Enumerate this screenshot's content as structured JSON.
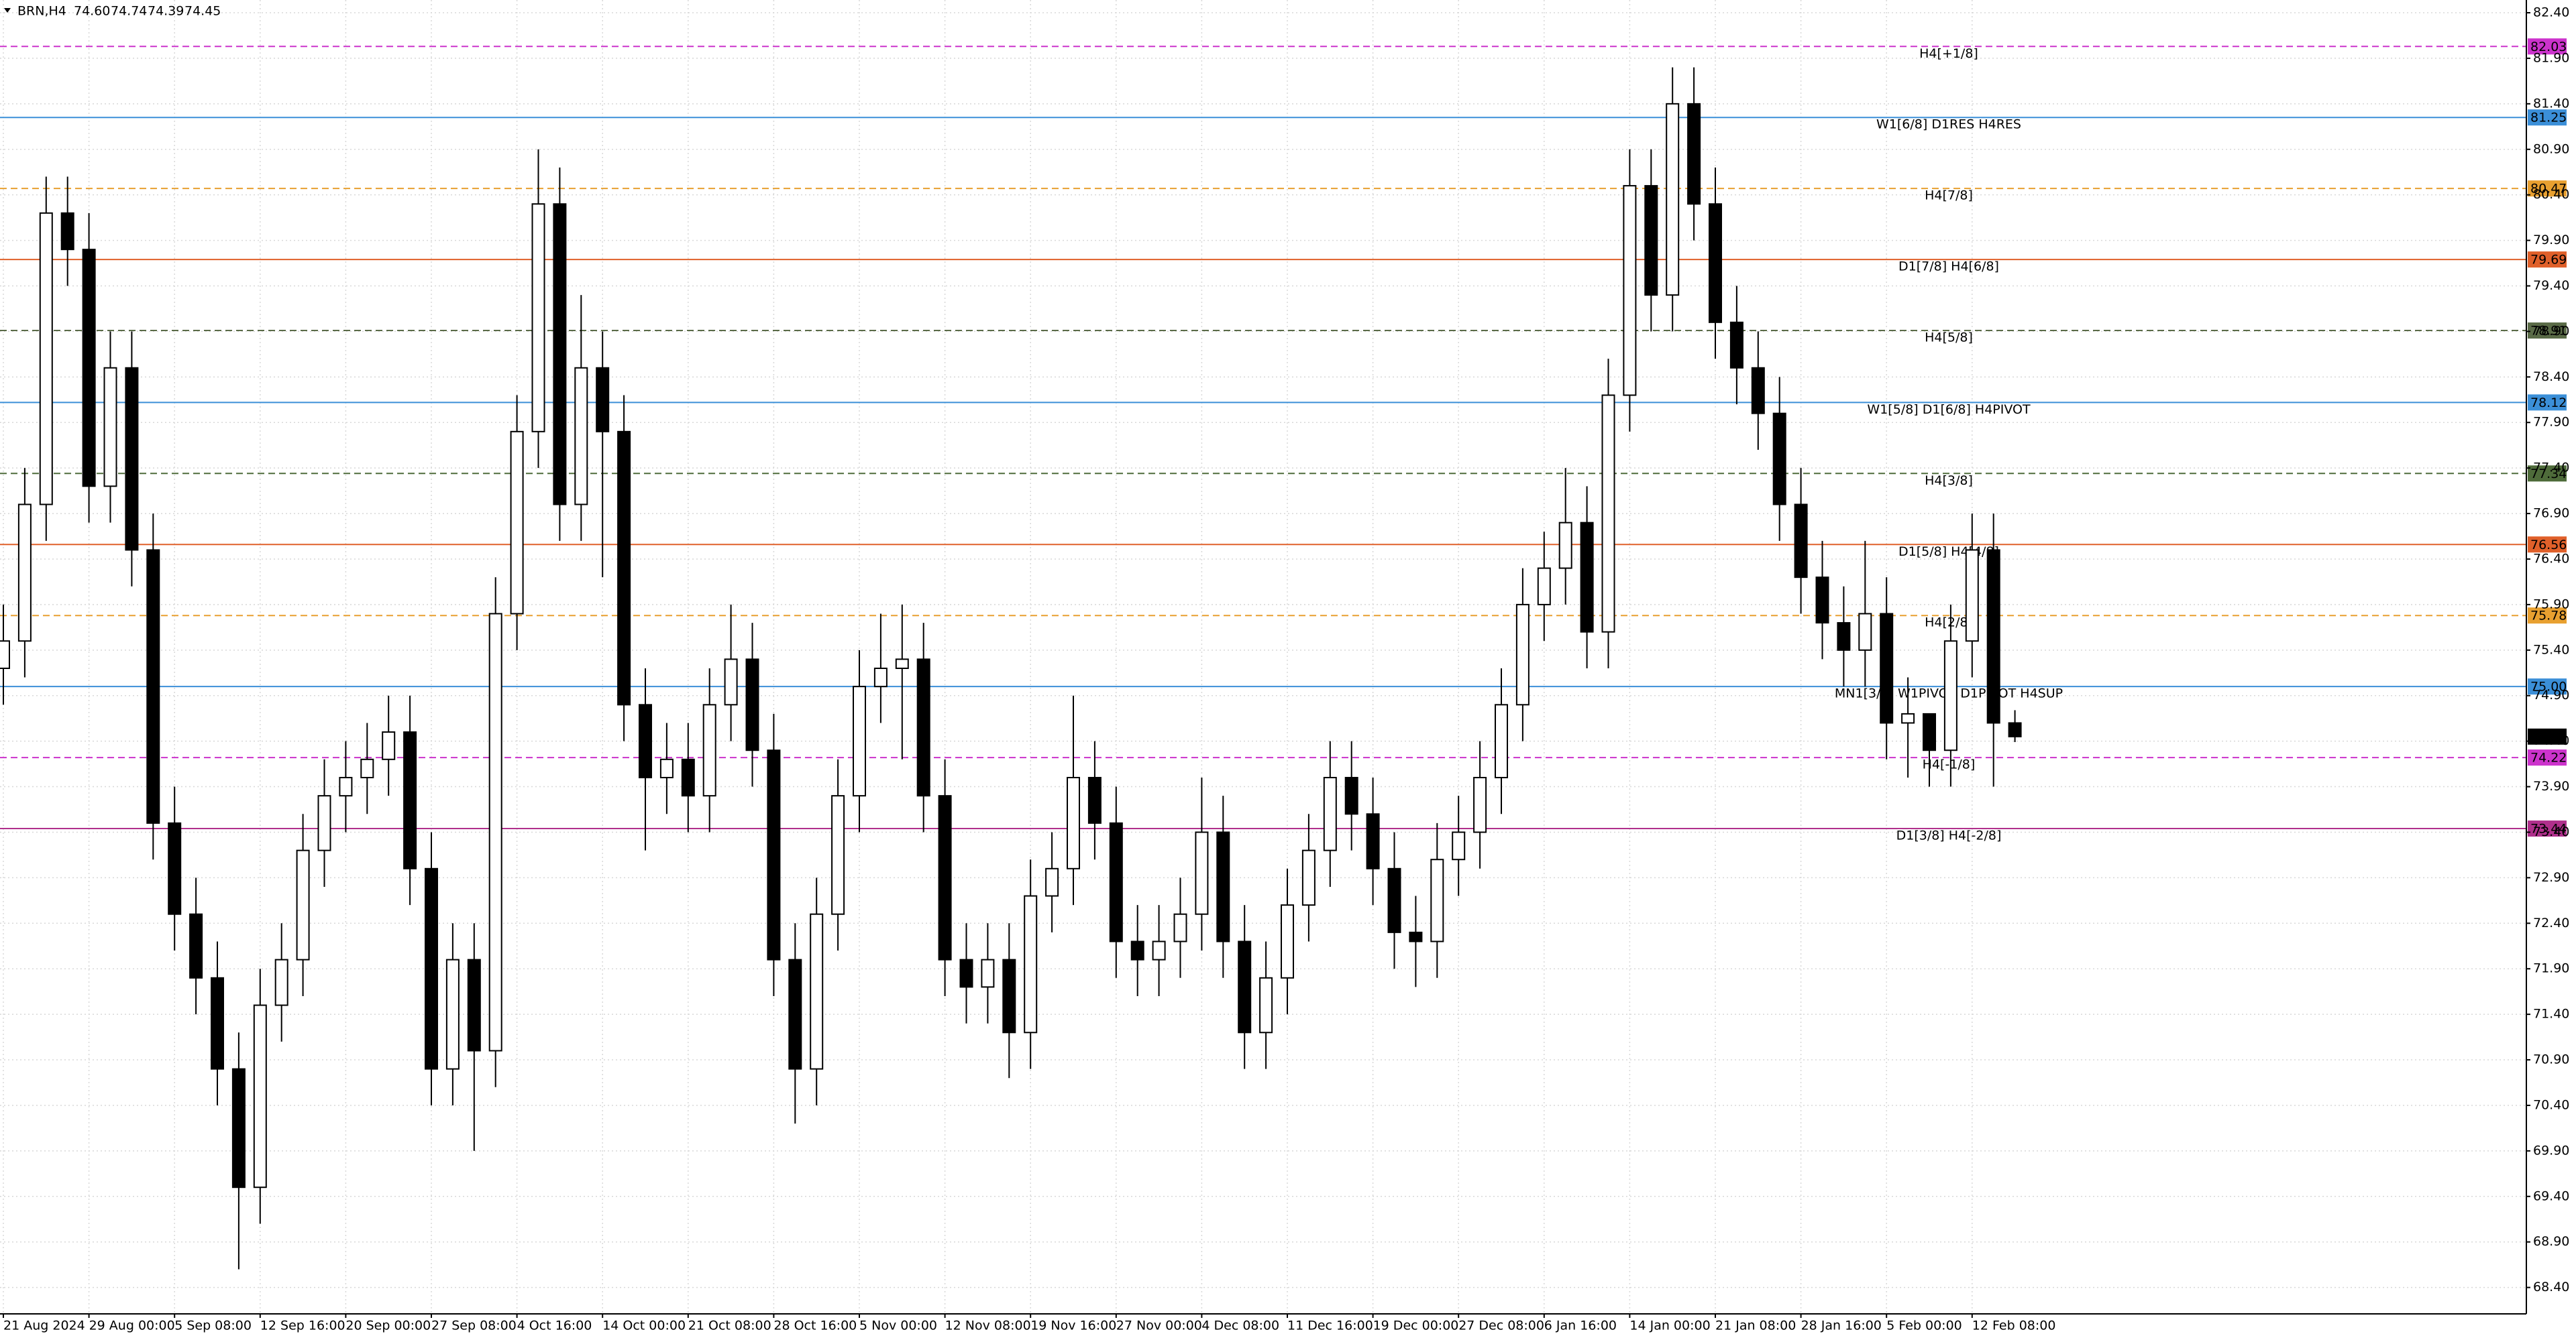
{
  "chart_data": {
    "type": "candlestick",
    "symbol": "BRN,H4",
    "last_bar_labels": [
      "74.60",
      "74.74",
      "74.39",
      "74.45"
    ],
    "x_labels": [
      "21 Aug 2024",
      "29 Aug 00:00",
      "5 Sep 08:00",
      "12 Sep 16:00",
      "20 Sep 00:00",
      "27 Sep 08:00",
      "4 Oct 16:00",
      "14 Oct 00:00",
      "21 Oct 08:00",
      "28 Oct 16:00",
      "5 Nov 00:00",
      "12 Nov 08:00",
      "19 Nov 16:00",
      "27 Nov 00:00",
      "4 Dec 08:00",
      "11 Dec 16:00",
      "19 Dec 00:00",
      "27 Dec 08:00",
      "6 Jan 16:00",
      "14 Jan 00:00",
      "21 Jan 08:00",
      "28 Jan 16:00",
      "5 Feb 00:00",
      "12 Feb 08:00"
    ],
    "open": [
      75.2,
      75.5,
      77,
      80.2,
      79.8,
      77.2,
      78.5,
      76.5,
      73.5,
      72.5,
      71.8,
      70.8,
      69.5,
      71.5,
      72,
      73.2,
      73.8,
      74,
      74.2,
      74.5,
      73,
      70.8,
      72,
      71,
      75.8,
      77.8,
      80.3,
      77,
      78.5,
      77.8,
      74.8,
      74,
      74.2,
      73.8,
      74.8,
      75.3,
      74.3,
      72,
      70.8,
      72.5,
      73.8,
      75,
      75.2,
      75.3,
      73.8,
      72,
      71.7,
      72,
      71.2,
      72.7,
      73,
      74,
      73.5,
      72.2,
      72,
      72.2,
      72.5,
      73.4,
      72.2,
      71.2,
      71.8,
      72.6,
      73.2,
      74,
      73.6,
      73,
      72.3,
      72.2,
      73.1,
      73.4,
      74,
      74.8,
      75.9,
      76.3,
      76.8,
      75.6,
      78.2,
      80.5,
      79.3,
      81.4,
      80.3,
      79,
      78.5,
      78,
      77,
      76.2,
      75.7,
      75.4,
      75.8,
      74.6,
      74.7,
      74.3,
      75.5,
      76.5,
      74.6
    ],
    "high": [
      75.9,
      77.4,
      80.6,
      80.6,
      80.2,
      78.9,
      78.9,
      76.9,
      73.9,
      72.9,
      72.2,
      71.2,
      71.9,
      72.4,
      73.6,
      74.2,
      74.4,
      74.6,
      74.9,
      74.9,
      73.4,
      72.4,
      72.4,
      76.2,
      78.2,
      80.9,
      80.7,
      79.3,
      78.9,
      78.2,
      75.2,
      74.6,
      74.6,
      75.2,
      75.9,
      75.7,
      74.7,
      72.4,
      72.9,
      74.2,
      75.4,
      75.8,
      75.9,
      75.7,
      74.2,
      72.4,
      72.4,
      72.4,
      73.1,
      73.4,
      74.9,
      74.4,
      73.9,
      72.6,
      72.6,
      72.9,
      74,
      73.8,
      72.6,
      72.2,
      73,
      73.6,
      74.4,
      74.4,
      74,
      73.4,
      72.7,
      73.5,
      73.8,
      74.4,
      75.2,
      76.3,
      76.7,
      77.4,
      77.2,
      78.6,
      80.9,
      80.9,
      81.8,
      81.8,
      80.7,
      79.4,
      78.9,
      78.4,
      77.4,
      76.6,
      76.1,
      76.6,
      76.2,
      75.1,
      74.7,
      75.9,
      76.9,
      76.9,
      74.74
    ],
    "low": [
      74.8,
      75.1,
      76.6,
      79.4,
      76.8,
      76.8,
      76.1,
      73.1,
      72.1,
      71.4,
      70.4,
      68.6,
      69.1,
      71.1,
      71.6,
      72.8,
      73.4,
      73.6,
      73.8,
      72.6,
      70.4,
      70.4,
      69.9,
      70.6,
      75.4,
      77.4,
      76.6,
      76.6,
      76.2,
      74.4,
      73.2,
      73.6,
      73.4,
      73.4,
      74.4,
      73.9,
      71.6,
      70.2,
      70.4,
      72.1,
      73.4,
      74.6,
      74.2,
      73.4,
      71.6,
      71.3,
      71.3,
      70.7,
      70.8,
      72.3,
      72.6,
      73.1,
      71.8,
      71.6,
      71.6,
      71.8,
      72.1,
      71.8,
      70.8,
      70.8,
      71.4,
      72.2,
      72.8,
      73.2,
      72.6,
      71.9,
      71.7,
      71.8,
      72.7,
      73,
      73.6,
      74.4,
      75.5,
      75.9,
      75.2,
      75.2,
      77.8,
      78.9,
      78.9,
      79.9,
      78.6,
      78.1,
      77.6,
      76.6,
      75.8,
      75.3,
      75,
      75,
      74.2,
      74,
      73.9,
      73.9,
      75.1,
      73.9,
      74.39
    ],
    "close": [
      75.5,
      77,
      80.2,
      79.8,
      77.2,
      78.5,
      76.5,
      73.5,
      72.5,
      71.8,
      70.8,
      69.5,
      71.5,
      72,
      73.2,
      73.8,
      74,
      74.2,
      74.5,
      73,
      70.8,
      72,
      71,
      75.8,
      77.8,
      80.3,
      77,
      78.5,
      77.8,
      74.8,
      74,
      74.2,
      73.8,
      74.8,
      75.3,
      74.3,
      72,
      70.8,
      72.5,
      73.8,
      75,
      75.2,
      75.3,
      73.8,
      72,
      71.7,
      72,
      71.2,
      72.7,
      73,
      74,
      73.5,
      72.2,
      72,
      72.2,
      72.5,
      73.4,
      72.2,
      71.2,
      71.8,
      72.6,
      73.2,
      74,
      73.6,
      73,
      72.3,
      72.2,
      73.1,
      73.4,
      74,
      74.8,
      75.9,
      76.3,
      76.8,
      75.6,
      78.2,
      80.5,
      79.3,
      81.4,
      80.3,
      79,
      78.5,
      78,
      77,
      76.2,
      75.7,
      75.4,
      75.8,
      74.6,
      74.7,
      74.3,
      75.5,
      76.5,
      74.6,
      74.45
    ],
    "up_color": "#ffffff",
    "down_color": "#000000",
    "ylim": [
      68.11,
      82.54
    ],
    "yticks": [
      {
        "value": 82.4,
        "label": "82.40"
      },
      {
        "value": 81.9,
        "label": "81.90"
      },
      {
        "value": 81.4,
        "label": "81.40"
      },
      {
        "value": 80.9,
        "label": "80.90"
      },
      {
        "value": 80.4,
        "label": "80.40"
      },
      {
        "value": 79.9,
        "label": "79.90"
      },
      {
        "value": 79.4,
        "label": "79.40"
      },
      {
        "value": 78.9,
        "label": "78.90"
      },
      {
        "value": 78.4,
        "label": "78.40"
      },
      {
        "value": 77.9,
        "label": "77.90"
      },
      {
        "value": 77.4,
        "label": "77.40"
      },
      {
        "value": 76.9,
        "label": "76.90"
      },
      {
        "value": 76.4,
        "label": "76.40"
      },
      {
        "value": 75.9,
        "label": "75.90"
      },
      {
        "value": 75.4,
        "label": "75.40"
      },
      {
        "value": 74.9,
        "label": "74.90"
      },
      {
        "value": 74.4,
        "label": "74.40"
      },
      {
        "value": 73.9,
        "label": "73.90"
      },
      {
        "value": 73.4,
        "label": "73.40"
      },
      {
        "value": 72.9,
        "label": "72.90"
      },
      {
        "value": 72.4,
        "label": "72.40"
      },
      {
        "value": 71.9,
        "label": "71.90"
      },
      {
        "value": 71.4,
        "label": "71.40"
      },
      {
        "value": 70.9,
        "label": "70.90"
      },
      {
        "value": 70.4,
        "label": "70.40"
      },
      {
        "value": 69.9,
        "label": "69.90"
      },
      {
        "value": 69.4,
        "label": "69.40"
      },
      {
        "value": 68.9,
        "label": "68.90"
      },
      {
        "value": 68.4,
        "label": "68.40"
      }
    ],
    "grid": true,
    "levels": [
      {
        "name": "H4[+1/8]",
        "value": 82.03,
        "color": "#cc33cc",
        "dashed": true
      },
      {
        "name": "W1[6/8] D1RES H4RES",
        "value": 81.25,
        "color": "#3b8fd8",
        "dashed": false
      },
      {
        "name": "H4[7/8]",
        "value": 80.47,
        "color": "#e8a030",
        "dashed": true
      },
      {
        "name": "D1[7/8] H4[6/8]",
        "value": 79.69,
        "color": "#e0602a",
        "dashed": false
      },
      {
        "name": "H4[5/8]",
        "value": 78.91,
        "color": "#5a6b47",
        "dashed": true
      },
      {
        "name": "W1[5/8] D1[6/8] H4PIVOT",
        "value": 78.12,
        "color": "#3b8fd8",
        "dashed": false
      },
      {
        "name": "H4[3/8]",
        "value": 77.34,
        "color": "#4e6b3a",
        "dashed": true
      },
      {
        "name": "D1[5/8] H4[4/8]",
        "value": 76.56,
        "color": "#e0602a",
        "dashed": false
      },
      {
        "name": "H4[2/8]",
        "value": 75.78,
        "color": "#e8a030",
        "dashed": true
      },
      {
        "name": "MN1[3/8] W1PIVOT D1PIVOT H4SUP",
        "value": 75,
        "value_label": "75.00",
        "color": "#3b8fd8",
        "dashed": false
      },
      {
        "name": "H4[-1/8]",
        "value": 74.22,
        "color": "#cc33cc",
        "dashed": true
      },
      {
        "name": "D1[3/8] H4[-2/8]",
        "value": 73.44,
        "color": "#b0308c",
        "dashed": false
      }
    ]
  }
}
